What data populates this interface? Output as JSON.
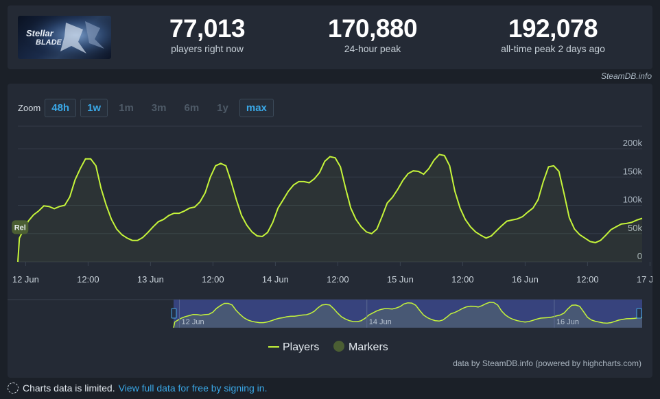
{
  "stats": {
    "current": {
      "value": "77,013",
      "label": "players right now"
    },
    "peak24": {
      "value": "170,880",
      "label": "24-hour peak"
    },
    "alltime": {
      "value": "192,078",
      "label": "all-time peak 2 days ago"
    }
  },
  "credit_top": "SteamDB.info",
  "zoom": {
    "label": "Zoom",
    "buttons": [
      {
        "label": "48h",
        "active": true
      },
      {
        "label": "1w",
        "active": true
      },
      {
        "label": "1m",
        "active": false
      },
      {
        "label": "3m",
        "active": false
      },
      {
        "label": "6m",
        "active": false
      },
      {
        "label": "1y",
        "active": false
      },
      {
        "label": "max",
        "active": true
      }
    ]
  },
  "colors": {
    "line": "#c6f53a",
    "marker": "#4b5e33",
    "navigator_mask": "#3a4685"
  },
  "chart_data": {
    "type": "line",
    "ylim": [
      0,
      200000
    ],
    "yticks": [
      "0",
      "50k",
      "100k",
      "150k",
      "200k"
    ],
    "xticks": [
      "12 Jun",
      "12:00",
      "13 Jun",
      "12:00",
      "14 Jun",
      "12:00",
      "15 Jun",
      "12:00",
      "16 Jun",
      "12:00",
      "17 Jun"
    ],
    "x_unit": "hours since 12 Jun 00:00 (UTC)",
    "series": [
      {
        "name": "Players",
        "points": [
          [
            -1.5,
            0
          ],
          [
            -1.2,
            42000
          ],
          [
            -0.5,
            55000
          ],
          [
            0.5,
            72000
          ],
          [
            1.5,
            83000
          ],
          [
            2.5,
            90000
          ],
          [
            3.5,
            99000
          ],
          [
            4.5,
            98000
          ],
          [
            5.5,
            94000
          ],
          [
            6.5,
            98000
          ],
          [
            7.5,
            100000
          ],
          [
            8.5,
            115000
          ],
          [
            9.5,
            145000
          ],
          [
            10.5,
            165000
          ],
          [
            11.5,
            182000
          ],
          [
            12.5,
            182000
          ],
          [
            13.5,
            170000
          ],
          [
            14.5,
            130000
          ],
          [
            15.5,
            100000
          ],
          [
            16.5,
            75000
          ],
          [
            17.5,
            58000
          ],
          [
            18.5,
            48000
          ],
          [
            19.5,
            42000
          ],
          [
            20.5,
            38000
          ],
          [
            21.5,
            38000
          ],
          [
            22.5,
            43000
          ],
          [
            23.5,
            52000
          ],
          [
            24.5,
            62000
          ],
          [
            25.5,
            71000
          ],
          [
            26.5,
            75000
          ],
          [
            27.5,
            82000
          ],
          [
            28.5,
            86000
          ],
          [
            29.5,
            86000
          ],
          [
            30.5,
            90000
          ],
          [
            31.5,
            95000
          ],
          [
            32.5,
            97000
          ],
          [
            33.5,
            106000
          ],
          [
            34.5,
            122000
          ],
          [
            35.5,
            150000
          ],
          [
            36.5,
            170000
          ],
          [
            37.5,
            174000
          ],
          [
            38.5,
            170000
          ],
          [
            39.5,
            142000
          ],
          [
            40.5,
            110000
          ],
          [
            41.5,
            82000
          ],
          [
            42.5,
            65000
          ],
          [
            43.5,
            53000
          ],
          [
            44.5,
            46000
          ],
          [
            45.5,
            45000
          ],
          [
            46.5,
            52000
          ],
          [
            47.5,
            70000
          ],
          [
            48.5,
            95000
          ],
          [
            49.5,
            110000
          ],
          [
            50.5,
            125000
          ],
          [
            51.5,
            136000
          ],
          [
            52.5,
            142000
          ],
          [
            53.5,
            142000
          ],
          [
            54.5,
            140000
          ],
          [
            55.5,
            147000
          ],
          [
            56.5,
            158000
          ],
          [
            57.5,
            178000
          ],
          [
            58.5,
            186000
          ],
          [
            59.5,
            184000
          ],
          [
            60.5,
            168000
          ],
          [
            61.5,
            130000
          ],
          [
            62.5,
            95000
          ],
          [
            63.5,
            75000
          ],
          [
            64.5,
            62000
          ],
          [
            65.5,
            53000
          ],
          [
            66.5,
            50000
          ],
          [
            67.5,
            58000
          ],
          [
            68.5,
            80000
          ],
          [
            69.5,
            104000
          ],
          [
            70.5,
            114000
          ],
          [
            71.5,
            128000
          ],
          [
            72.5,
            144000
          ],
          [
            73.5,
            156000
          ],
          [
            74.5,
            161000
          ],
          [
            75.5,
            160000
          ],
          [
            76.5,
            155000
          ],
          [
            77.5,
            165000
          ],
          [
            78.5,
            180000
          ],
          [
            79.5,
            190000
          ],
          [
            80.5,
            188000
          ],
          [
            81.5,
            170000
          ],
          [
            82.5,
            125000
          ],
          [
            83.5,
            95000
          ],
          [
            84.5,
            75000
          ],
          [
            85.5,
            62000
          ],
          [
            86.5,
            53000
          ],
          [
            87.5,
            47000
          ],
          [
            88.5,
            42000
          ],
          [
            89.5,
            46000
          ],
          [
            90.5,
            55000
          ],
          [
            91.5,
            64000
          ],
          [
            92.5,
            72000
          ],
          [
            93.5,
            74000
          ],
          [
            94.5,
            76000
          ],
          [
            95.5,
            80000
          ],
          [
            96.5,
            88000
          ],
          [
            97.5,
            95000
          ],
          [
            98.5,
            110000
          ],
          [
            99.5,
            142000
          ],
          [
            100.5,
            168000
          ],
          [
            101.5,
            170000
          ],
          [
            102.5,
            160000
          ],
          [
            103.5,
            120000
          ],
          [
            104.5,
            78000
          ],
          [
            105.5,
            58000
          ],
          [
            106.5,
            48000
          ],
          [
            107.5,
            42000
          ],
          [
            108.5,
            36000
          ],
          [
            109.5,
            34000
          ],
          [
            110.5,
            38000
          ],
          [
            111.5,
            47000
          ],
          [
            112.5,
            57000
          ],
          [
            113.5,
            62000
          ],
          [
            114.5,
            67000
          ],
          [
            115.5,
            68000
          ],
          [
            116.5,
            70000
          ],
          [
            117.5,
            74000
          ],
          [
            118.5,
            77013
          ]
        ]
      }
    ],
    "markers": [
      {
        "label": "Rel",
        "x": -1.2,
        "y": 42000
      }
    ],
    "navigator_ticks": [
      "12 Jun",
      "14 Jun",
      "16 Jun"
    ],
    "legend": [
      {
        "name": "Players"
      },
      {
        "name": "Markers"
      }
    ],
    "legend_position": "bottom-center",
    "credits": "data by SteamDB.info (powered by highcharts.com)"
  },
  "footer": {
    "note": "Charts data is limited.",
    "link": "View full data for free by signing in."
  }
}
